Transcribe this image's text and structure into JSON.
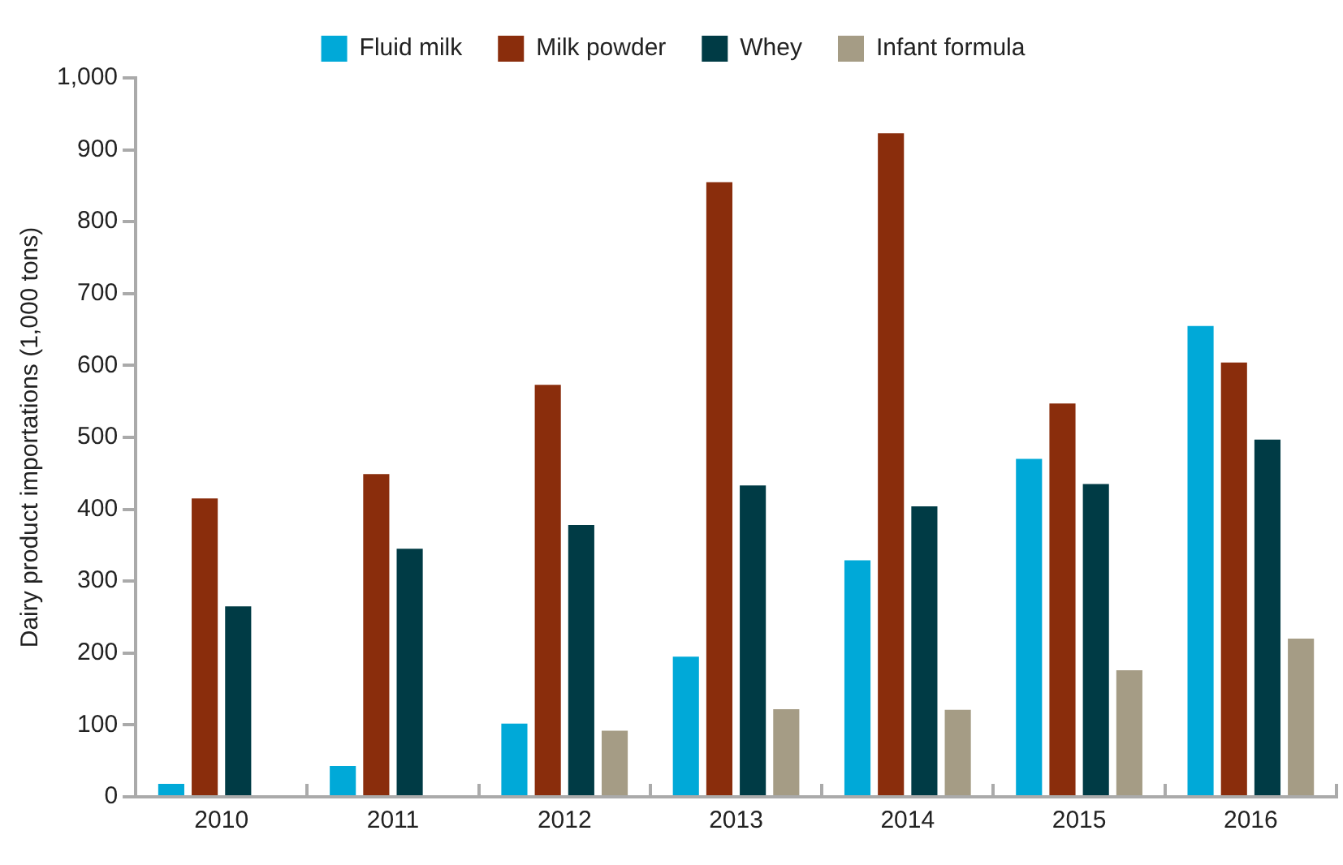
{
  "chart_data": {
    "type": "bar",
    "ylabel": "Dairy product importations (1,000 tons)",
    "categories": [
      "2010",
      "2011",
      "2012",
      "2013",
      "2014",
      "2015",
      "2016"
    ],
    "series": [
      {
        "name": "Fluid milk",
        "color": "#00a9d8",
        "values": [
          18,
          43,
          102,
          195,
          329,
          470,
          655
        ]
      },
      {
        "name": "Milk powder",
        "color": "#8a2d0c",
        "values": [
          415,
          449,
          573,
          855,
          923,
          547,
          604
        ]
      },
      {
        "name": "Whey",
        "color": "#003b45",
        "values": [
          265,
          345,
          378,
          433,
          404,
          435,
          497
        ]
      },
      {
        "name": "Infant formula",
        "color": "#a59c85",
        "values": [
          null,
          null,
          92,
          122,
          121,
          176,
          220
        ]
      }
    ],
    "ylim": [
      0,
      1000
    ],
    "yticks": [
      0,
      100,
      200,
      300,
      400,
      500,
      600,
      700,
      800,
      900,
      {
        "value": 1000,
        "label": "1,000"
      }
    ],
    "grid": false,
    "legend": "top"
  }
}
